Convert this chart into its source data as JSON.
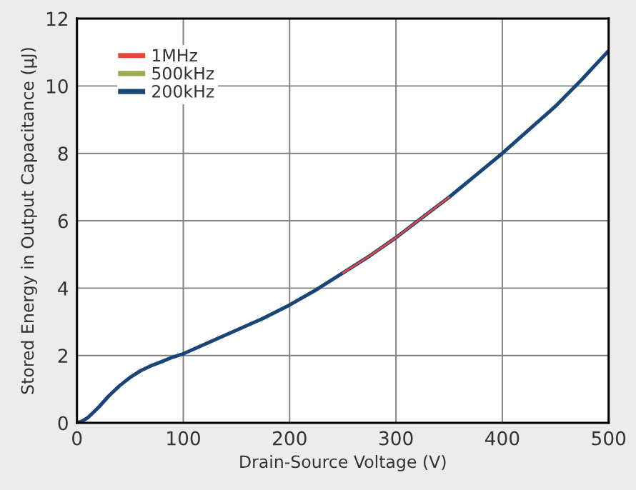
{
  "chart_data": {
    "type": "line",
    "xlabel": "Drain-Source Voltage (V)",
    "ylabel": "Stored Energy in Output Capacitance (µJ)",
    "x": [
      0,
      5,
      10,
      20,
      30,
      40,
      50,
      60,
      70,
      80,
      90,
      100,
      125,
      150,
      175,
      200,
      225,
      250,
      275,
      300,
      325,
      350,
      375,
      400,
      425,
      450,
      475,
      500
    ],
    "series": [
      {
        "name": "1MHz",
        "color": "#e8473a",
        "values": [
          null,
          null,
          null,
          null,
          null,
          null,
          null,
          null,
          null,
          null,
          null,
          null,
          null,
          null,
          null,
          null,
          null,
          4.45,
          4.95,
          5.5,
          6.1,
          6.7,
          null,
          null,
          null,
          null,
          null,
          null
        ]
      },
      {
        "name": "500kHz",
        "color": "#9aaa4e",
        "values": [
          null,
          null,
          null,
          null,
          null,
          null,
          null,
          null,
          null,
          null,
          null,
          null,
          null,
          null,
          null,
          null,
          null,
          null,
          null,
          null,
          null,
          null,
          null,
          null,
          null,
          null,
          null,
          null
        ]
      },
      {
        "name": "200kHz",
        "color": "#1a4577",
        "values": [
          0,
          0.05,
          0.15,
          0.45,
          0.8,
          1.1,
          1.35,
          1.55,
          1.7,
          1.82,
          1.95,
          2.05,
          2.4,
          2.75,
          3.1,
          3.5,
          3.95,
          4.45,
          4.95,
          5.5,
          6.1,
          6.7,
          7.35,
          8.0,
          8.7,
          9.4,
          10.2,
          11.05
        ]
      }
    ],
    "xlim": [
      0,
      500
    ],
    "xticks": [
      0,
      100,
      200,
      300,
      400,
      500
    ],
    "ylim": [
      0,
      12
    ],
    "yticks": [
      0,
      2,
      4,
      6,
      8,
      10,
      12
    ],
    "grid": true,
    "legend": "top left",
    "marker": "none",
    "line_style": "solid"
  }
}
